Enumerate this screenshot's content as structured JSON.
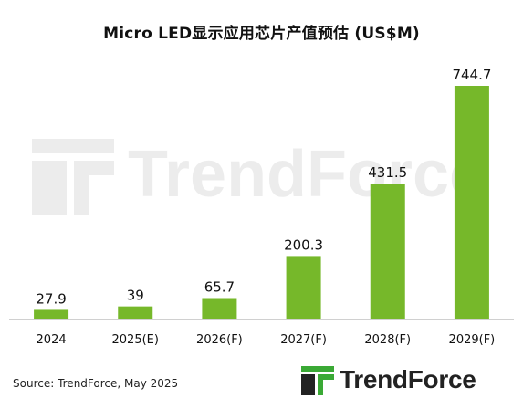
{
  "chart_data": {
    "type": "bar",
    "title": "Micro LED显示应用芯片产值预估 (US$M)",
    "categories": [
      "2024",
      "2025(E)",
      "2026(F)",
      "2027(F)",
      "2028(F)",
      "2029(F)"
    ],
    "values": [
      27.9,
      39,
      65.7,
      200.3,
      431.5,
      744.7
    ],
    "value_labels": [
      "27.9",
      "39",
      "65.7",
      "200.3",
      "431.5",
      "744.7"
    ],
    "xlabel": "",
    "ylabel": "",
    "ylim": [
      0,
      744.7
    ],
    "grid": false,
    "legend": "none",
    "bar_color": "#76b82a"
  },
  "source": "Source: TrendForce, May 2025",
  "watermark": {
    "text": "TrendForce"
  },
  "brand": {
    "text": "TrendForce",
    "icon": "trendforce-logo-icon",
    "icon_color": "#3aa935"
  }
}
